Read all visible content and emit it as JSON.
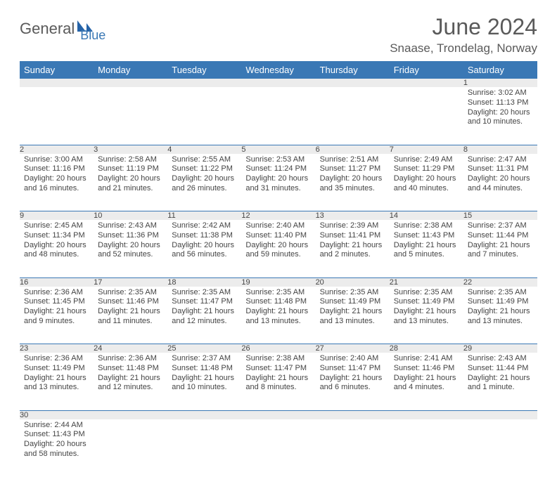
{
  "logo": {
    "part1": "General",
    "part2": "Blue"
  },
  "title": "June 2024",
  "location": "Snaase, Trondelag, Norway",
  "colors": {
    "header_bg": "#3a78b5",
    "header_text": "#ffffff",
    "daynum_bg": "#ececec",
    "row_divider": "#3a78b5",
    "body_text": "#444444",
    "title_text": "#5a5a5a"
  },
  "fonts": {
    "title_size_pt": 24,
    "location_size_pt": 13,
    "weekday_size_pt": 10,
    "daynum_size_pt": 9,
    "cell_size_pt": 8
  },
  "weekdays": [
    "Sunday",
    "Monday",
    "Tuesday",
    "Wednesday",
    "Thursday",
    "Friday",
    "Saturday"
  ],
  "weeks": [
    [
      null,
      null,
      null,
      null,
      null,
      null,
      {
        "n": "1",
        "sr": "Sunrise: 3:02 AM",
        "ss": "Sunset: 11:13 PM",
        "dl": "Daylight: 20 hours and 10 minutes."
      }
    ],
    [
      {
        "n": "2",
        "sr": "Sunrise: 3:00 AM",
        "ss": "Sunset: 11:16 PM",
        "dl": "Daylight: 20 hours and 16 minutes."
      },
      {
        "n": "3",
        "sr": "Sunrise: 2:58 AM",
        "ss": "Sunset: 11:19 PM",
        "dl": "Daylight: 20 hours and 21 minutes."
      },
      {
        "n": "4",
        "sr": "Sunrise: 2:55 AM",
        "ss": "Sunset: 11:22 PM",
        "dl": "Daylight: 20 hours and 26 minutes."
      },
      {
        "n": "5",
        "sr": "Sunrise: 2:53 AM",
        "ss": "Sunset: 11:24 PM",
        "dl": "Daylight: 20 hours and 31 minutes."
      },
      {
        "n": "6",
        "sr": "Sunrise: 2:51 AM",
        "ss": "Sunset: 11:27 PM",
        "dl": "Daylight: 20 hours and 35 minutes."
      },
      {
        "n": "7",
        "sr": "Sunrise: 2:49 AM",
        "ss": "Sunset: 11:29 PM",
        "dl": "Daylight: 20 hours and 40 minutes."
      },
      {
        "n": "8",
        "sr": "Sunrise: 2:47 AM",
        "ss": "Sunset: 11:31 PM",
        "dl": "Daylight: 20 hours and 44 minutes."
      }
    ],
    [
      {
        "n": "9",
        "sr": "Sunrise: 2:45 AM",
        "ss": "Sunset: 11:34 PM",
        "dl": "Daylight: 20 hours and 48 minutes."
      },
      {
        "n": "10",
        "sr": "Sunrise: 2:43 AM",
        "ss": "Sunset: 11:36 PM",
        "dl": "Daylight: 20 hours and 52 minutes."
      },
      {
        "n": "11",
        "sr": "Sunrise: 2:42 AM",
        "ss": "Sunset: 11:38 PM",
        "dl": "Daylight: 20 hours and 56 minutes."
      },
      {
        "n": "12",
        "sr": "Sunrise: 2:40 AM",
        "ss": "Sunset: 11:40 PM",
        "dl": "Daylight: 20 hours and 59 minutes."
      },
      {
        "n": "13",
        "sr": "Sunrise: 2:39 AM",
        "ss": "Sunset: 11:41 PM",
        "dl": "Daylight: 21 hours and 2 minutes."
      },
      {
        "n": "14",
        "sr": "Sunrise: 2:38 AM",
        "ss": "Sunset: 11:43 PM",
        "dl": "Daylight: 21 hours and 5 minutes."
      },
      {
        "n": "15",
        "sr": "Sunrise: 2:37 AM",
        "ss": "Sunset: 11:44 PM",
        "dl": "Daylight: 21 hours and 7 minutes."
      }
    ],
    [
      {
        "n": "16",
        "sr": "Sunrise: 2:36 AM",
        "ss": "Sunset: 11:45 PM",
        "dl": "Daylight: 21 hours and 9 minutes."
      },
      {
        "n": "17",
        "sr": "Sunrise: 2:35 AM",
        "ss": "Sunset: 11:46 PM",
        "dl": "Daylight: 21 hours and 11 minutes."
      },
      {
        "n": "18",
        "sr": "Sunrise: 2:35 AM",
        "ss": "Sunset: 11:47 PM",
        "dl": "Daylight: 21 hours and 12 minutes."
      },
      {
        "n": "19",
        "sr": "Sunrise: 2:35 AM",
        "ss": "Sunset: 11:48 PM",
        "dl": "Daylight: 21 hours and 13 minutes."
      },
      {
        "n": "20",
        "sr": "Sunrise: 2:35 AM",
        "ss": "Sunset: 11:49 PM",
        "dl": "Daylight: 21 hours and 13 minutes."
      },
      {
        "n": "21",
        "sr": "Sunrise: 2:35 AM",
        "ss": "Sunset: 11:49 PM",
        "dl": "Daylight: 21 hours and 13 minutes."
      },
      {
        "n": "22",
        "sr": "Sunrise: 2:35 AM",
        "ss": "Sunset: 11:49 PM",
        "dl": "Daylight: 21 hours and 13 minutes."
      }
    ],
    [
      {
        "n": "23",
        "sr": "Sunrise: 2:36 AM",
        "ss": "Sunset: 11:49 PM",
        "dl": "Daylight: 21 hours and 13 minutes."
      },
      {
        "n": "24",
        "sr": "Sunrise: 2:36 AM",
        "ss": "Sunset: 11:48 PM",
        "dl": "Daylight: 21 hours and 12 minutes."
      },
      {
        "n": "25",
        "sr": "Sunrise: 2:37 AM",
        "ss": "Sunset: 11:48 PM",
        "dl": "Daylight: 21 hours and 10 minutes."
      },
      {
        "n": "26",
        "sr": "Sunrise: 2:38 AM",
        "ss": "Sunset: 11:47 PM",
        "dl": "Daylight: 21 hours and 8 minutes."
      },
      {
        "n": "27",
        "sr": "Sunrise: 2:40 AM",
        "ss": "Sunset: 11:47 PM",
        "dl": "Daylight: 21 hours and 6 minutes."
      },
      {
        "n": "28",
        "sr": "Sunrise: 2:41 AM",
        "ss": "Sunset: 11:46 PM",
        "dl": "Daylight: 21 hours and 4 minutes."
      },
      {
        "n": "29",
        "sr": "Sunrise: 2:43 AM",
        "ss": "Sunset: 11:44 PM",
        "dl": "Daylight: 21 hours and 1 minute."
      }
    ],
    [
      {
        "n": "30",
        "sr": "Sunrise: 2:44 AM",
        "ss": "Sunset: 11:43 PM",
        "dl": "Daylight: 20 hours and 58 minutes."
      },
      null,
      null,
      null,
      null,
      null,
      null
    ]
  ]
}
